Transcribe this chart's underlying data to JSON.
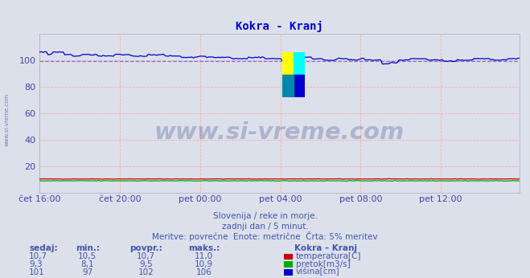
{
  "title": "Kokra - Kranj",
  "title_color": "#0000cc",
  "bg_color": "#dce0ea",
  "plot_bg_color": "#dce0ea",
  "grid_color": "#ffaaaa",
  "ylim": [
    0,
    120
  ],
  "yticks": [
    20,
    40,
    60,
    80,
    100
  ],
  "ytick_color": "#4444aa",
  "xtick_labels": [
    "čet 16:00",
    "čet 20:00",
    "pet 00:00",
    "pet 04:00",
    "pet 08:00",
    "pet 12:00"
  ],
  "xtick_positions": [
    0,
    48,
    96,
    144,
    192,
    240
  ],
  "n_points": 288,
  "temp_color": "#cc0000",
  "flow_color": "#00aa00",
  "height_color": "#0000cc",
  "dashed_line_color": "#6666cc",
  "dashed_line_value": 99.5,
  "watermark_text": "www.si-vreme.com",
  "watermark_color": "#334488",
  "watermark_alpha": 0.28,
  "sidebar_text": "www.si-vreme.com",
  "sidebar_color": "#4455aa",
  "info_line1": "Slovenija / reke in morje.",
  "info_line2": "zadnji dan / 5 minut.",
  "info_line3": "Meritve: povrečne  Enote: metrične  Črta: 5% meritev",
  "info_color": "#4455aa",
  "legend_title": "Kokra – Kranj",
  "legend_items": [
    "temperatura[C]",
    "pretok[m3/s]",
    "višina[cm]"
  ],
  "legend_colors": [
    "#cc0000",
    "#00aa00",
    "#0000cc"
  ],
  "table_headers": [
    "sedaj:",
    "min.:",
    "povpr.:",
    "maks.:"
  ],
  "table_data": [
    [
      "10,7",
      "10,5",
      "10,7",
      "11,0"
    ],
    [
      "9,3",
      "8,1",
      "9,5",
      "10,9"
    ],
    [
      "101",
      "97",
      "102",
      "106"
    ]
  ],
  "table_color": "#4455aa",
  "temp_data_base": 10.7,
  "flow_data_base": 9.3,
  "height_data_base": 101
}
